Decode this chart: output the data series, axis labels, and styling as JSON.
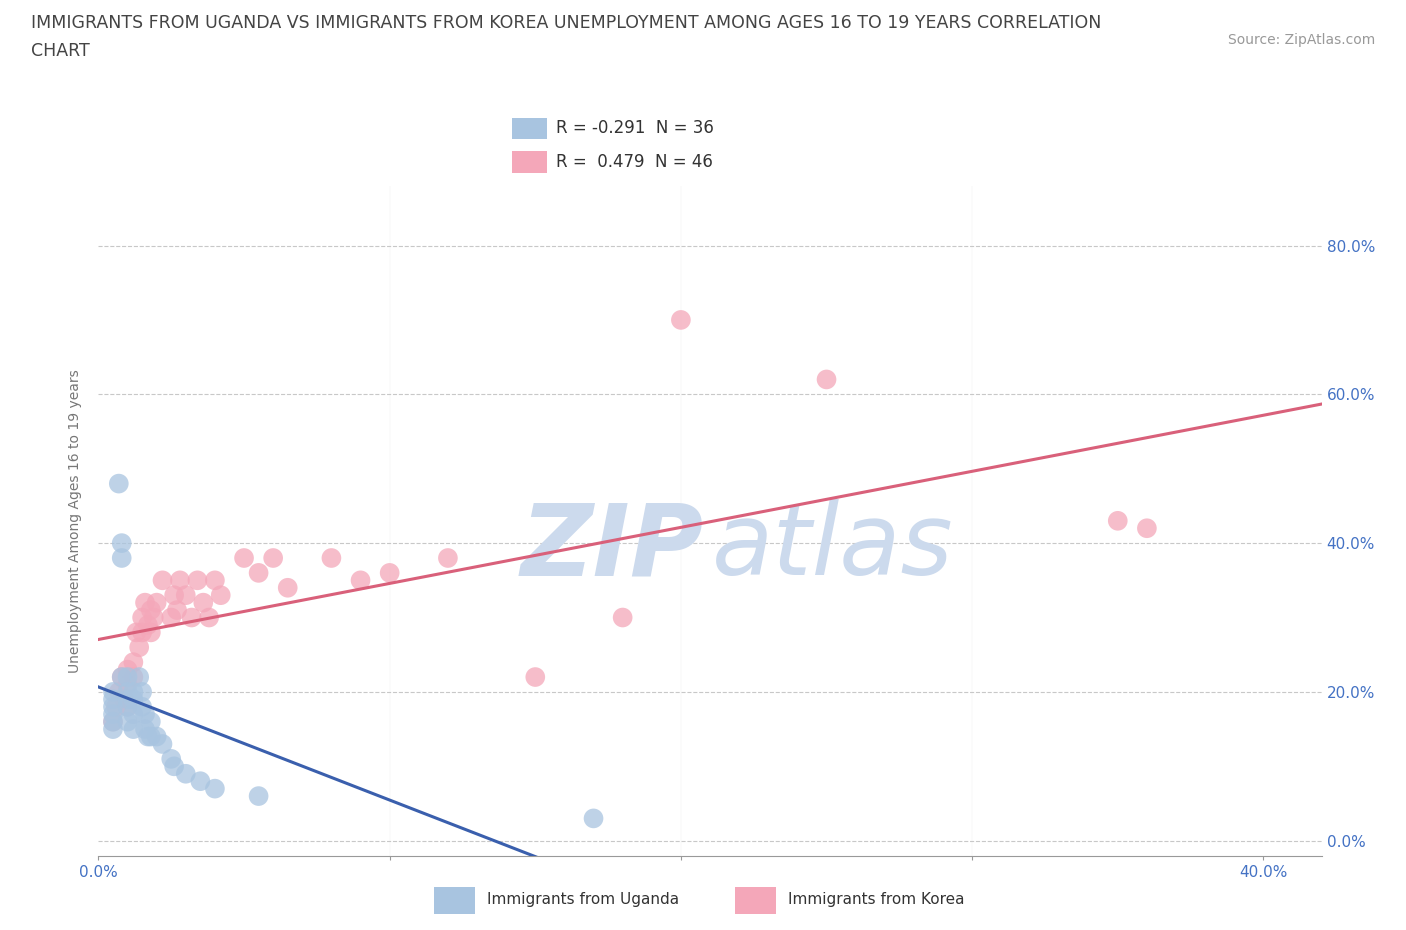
{
  "title_line1": "IMMIGRANTS FROM UGANDA VS IMMIGRANTS FROM KOREA UNEMPLOYMENT AMONG AGES 16 TO 19 YEARS CORRELATION",
  "title_line2": "CHART",
  "source_text": "Source: ZipAtlas.com",
  "ylabel": "Unemployment Among Ages 16 to 19 years",
  "xlim": [
    0.0,
    0.42
  ],
  "ylim": [
    -0.02,
    0.88
  ],
  "ytick_labels": [
    "0.0%",
    "20.0%",
    "40.0%",
    "60.0%",
    "80.0%"
  ],
  "ytick_values": [
    0.0,
    0.2,
    0.4,
    0.6,
    0.8
  ],
  "xtick_labels": [
    "0.0%",
    "40.0%"
  ],
  "xtick_values": [
    0.0,
    0.4
  ],
  "grid_color": "#c8c8c8",
  "uganda_color": "#a8c4e0",
  "korea_color": "#f4a7b9",
  "uganda_line_color": "#3a5fad",
  "korea_line_color": "#d9607a",
  "background_color": "#ffffff",
  "title_color": "#444444",
  "axis_color": "#4472c4",
  "title_fontsize": 12.5,
  "source_fontsize": 10,
  "label_fontsize": 10,
  "uganda_x": [
    0.005,
    0.005,
    0.005,
    0.005,
    0.005,
    0.005,
    0.007,
    0.008,
    0.008,
    0.008,
    0.01,
    0.01,
    0.01,
    0.01,
    0.01,
    0.012,
    0.012,
    0.012,
    0.012,
    0.014,
    0.015,
    0.015,
    0.016,
    0.016,
    0.017,
    0.018,
    0.018,
    0.02,
    0.022,
    0.025,
    0.026,
    0.03,
    0.035,
    0.04,
    0.055,
    0.17
  ],
  "uganda_y": [
    0.2,
    0.19,
    0.18,
    0.17,
    0.16,
    0.15,
    0.48,
    0.4,
    0.38,
    0.22,
    0.22,
    0.2,
    0.19,
    0.18,
    0.16,
    0.2,
    0.19,
    0.17,
    0.15,
    0.22,
    0.2,
    0.18,
    0.17,
    0.15,
    0.14,
    0.16,
    0.14,
    0.14,
    0.13,
    0.11,
    0.1,
    0.09,
    0.08,
    0.07,
    0.06,
    0.03
  ],
  "korea_x": [
    0.005,
    0.006,
    0.007,
    0.008,
    0.009,
    0.01,
    0.01,
    0.01,
    0.012,
    0.012,
    0.013,
    0.014,
    0.015,
    0.015,
    0.016,
    0.017,
    0.018,
    0.018,
    0.019,
    0.02,
    0.022,
    0.025,
    0.026,
    0.027,
    0.028,
    0.03,
    0.032,
    0.034,
    0.036,
    0.038,
    0.04,
    0.042,
    0.05,
    0.055,
    0.06,
    0.065,
    0.08,
    0.09,
    0.1,
    0.12,
    0.15,
    0.18,
    0.2,
    0.25,
    0.35,
    0.36
  ],
  "korea_y": [
    0.16,
    0.18,
    0.2,
    0.22,
    0.19,
    0.21,
    0.23,
    0.18,
    0.24,
    0.22,
    0.28,
    0.26,
    0.3,
    0.28,
    0.32,
    0.29,
    0.31,
    0.28,
    0.3,
    0.32,
    0.35,
    0.3,
    0.33,
    0.31,
    0.35,
    0.33,
    0.3,
    0.35,
    0.32,
    0.3,
    0.35,
    0.33,
    0.38,
    0.36,
    0.38,
    0.34,
    0.38,
    0.35,
    0.36,
    0.38,
    0.22,
    0.3,
    0.7,
    0.62,
    0.43,
    0.42
  ],
  "watermark_zip_color": "#ccd9ea",
  "watermark_atlas_color": "#c8d8e8",
  "legend_uganda_label": "R = -0.291  N = 36",
  "legend_korea_label": "R =  0.479  N = 46",
  "bottom_legend_uganda": "Immigrants from Uganda",
  "bottom_legend_korea": "Immigrants from Korea"
}
